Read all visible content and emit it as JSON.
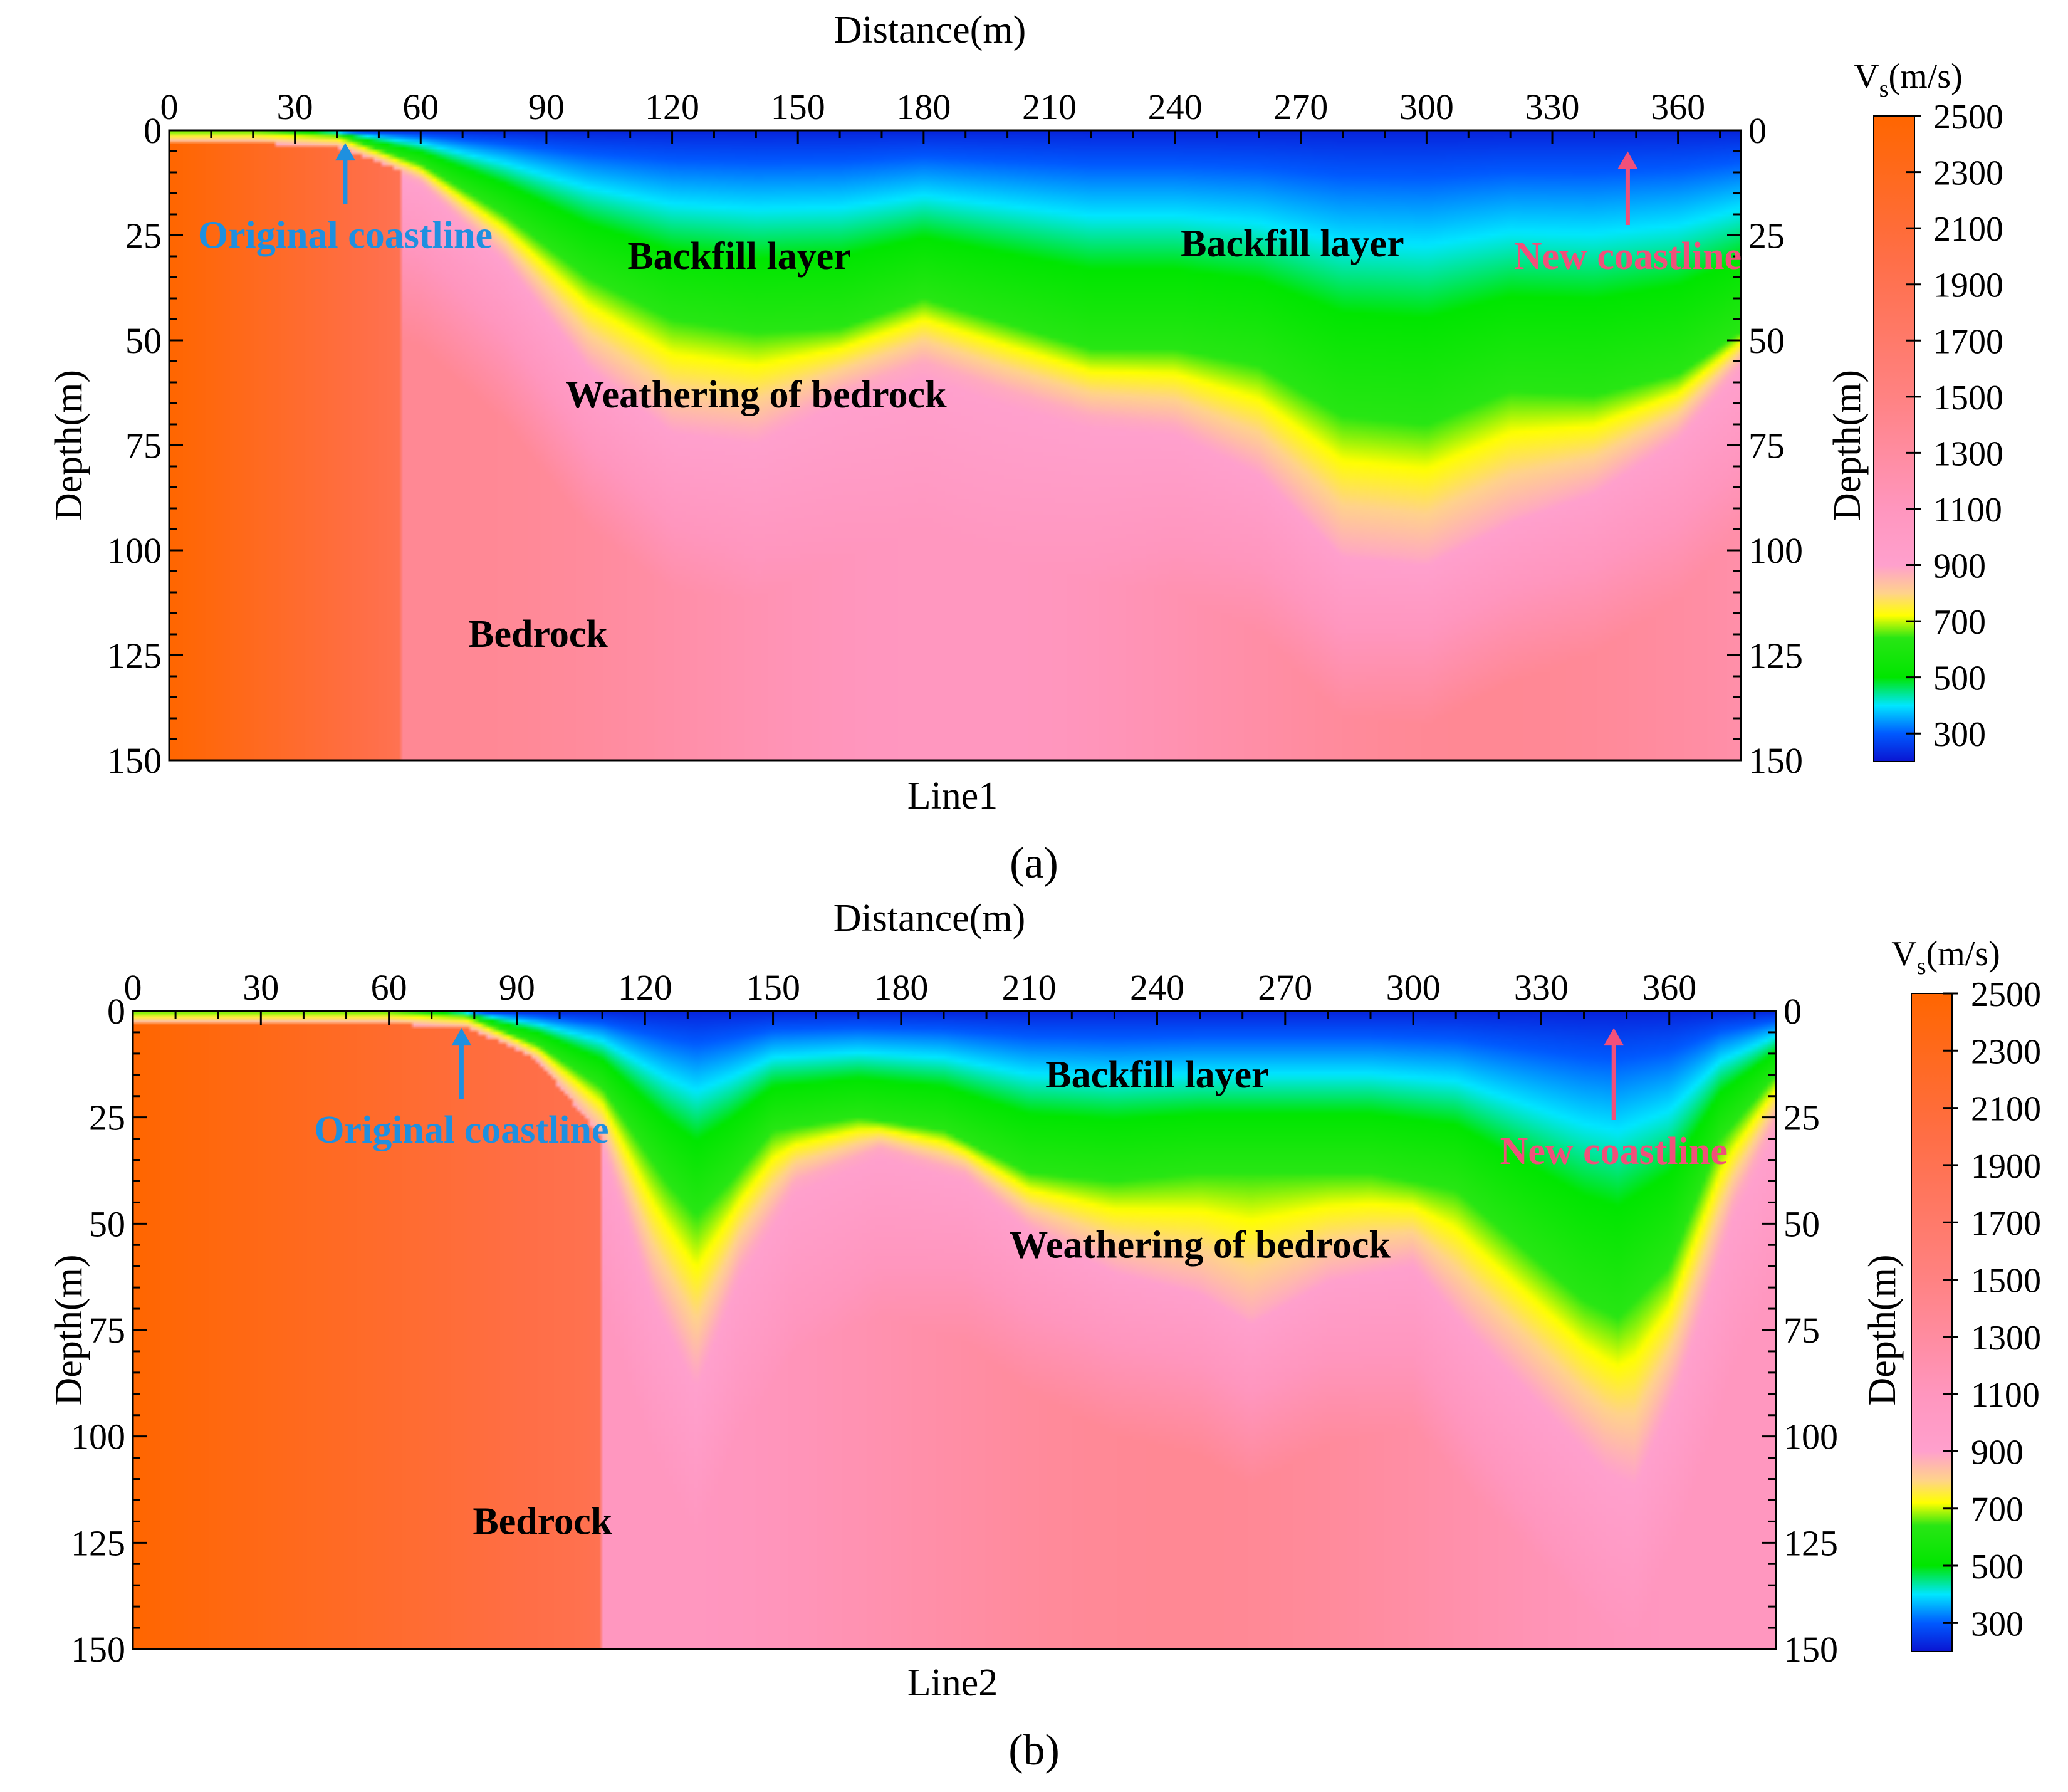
{
  "chart_data": [
    {
      "type": "heatmap",
      "panel_label": "(a)",
      "line_label": "Line1",
      "xlabel": "Distance(m)",
      "ylabel": "Depth(m)",
      "xlim": [
        0,
        375
      ],
      "ylim": [
        0,
        150
      ],
      "y_inverted": true,
      "x_ticks": [
        0,
        30,
        60,
        90,
        120,
        150,
        180,
        210,
        240,
        270,
        300,
        330,
        360
      ],
      "y_ticks": [
        0,
        25,
        50,
        75,
        100,
        125,
        150
      ],
      "colorbar": {
        "title_main": "V",
        "title_sub": "s",
        "title_unit": "(m/s)",
        "range": [
          200,
          2500
        ],
        "ticks": [
          300,
          500,
          700,
          900,
          1100,
          1300,
          1500,
          1700,
          1900,
          2100,
          2300,
          2500
        ]
      },
      "interfaces": {
        "backfill_base": [
          [
            0,
            0
          ],
          [
            20,
            0
          ],
          [
            40,
            1
          ],
          [
            60,
            8
          ],
          [
            80,
            20
          ],
          [
            100,
            35
          ],
          [
            120,
            45
          ],
          [
            140,
            48
          ],
          [
            160,
            47
          ],
          [
            180,
            40
          ],
          [
            200,
            46
          ],
          [
            220,
            52
          ],
          [
            240,
            52
          ],
          [
            260,
            56
          ],
          [
            280,
            68
          ],
          [
            300,
            70
          ],
          [
            320,
            62
          ],
          [
            340,
            63
          ],
          [
            360,
            58
          ],
          [
            375,
            48
          ]
        ],
        "weathering_base": [
          [
            0,
            0
          ],
          [
            20,
            0
          ],
          [
            40,
            3
          ],
          [
            60,
            12
          ],
          [
            80,
            30
          ],
          [
            100,
            55
          ],
          [
            120,
            70
          ],
          [
            140,
            72
          ],
          [
            160,
            62
          ],
          [
            180,
            55
          ],
          [
            200,
            62
          ],
          [
            220,
            68
          ],
          [
            240,
            70
          ],
          [
            260,
            80
          ],
          [
            280,
            100
          ],
          [
            300,
            102
          ],
          [
            320,
            92
          ],
          [
            340,
            85
          ],
          [
            360,
            72
          ],
          [
            375,
            55
          ]
        ]
      },
      "annotations": [
        {
          "text": "Original coastline",
          "x": 42,
          "y": 25,
          "color": "#1e90e0",
          "kind": "arrow",
          "arrow_tip_y": 3
        },
        {
          "text": "New coastline",
          "x": 348,
          "y": 30,
          "color": "#f0507a",
          "kind": "arrow",
          "arrow_tip_y": 5
        },
        {
          "text": "Backfill layer",
          "x": 136,
          "y": 30,
          "color": "#000000"
        },
        {
          "text": "Backfill layer",
          "x": 268,
          "y": 27,
          "color": "#000000"
        },
        {
          "text": "Weathering of bedrock",
          "x": 140,
          "y": 63,
          "color": "#000000"
        },
        {
          "text": "Bedrock",
          "x": 88,
          "y": 120,
          "color": "#000000"
        }
      ]
    },
    {
      "type": "heatmap",
      "panel_label": "(b)",
      "line_label": "Line2",
      "xlabel": "Distance(m)",
      "ylabel": "Depth(m)",
      "xlim": [
        0,
        385
      ],
      "ylim": [
        0,
        150
      ],
      "y_inverted": true,
      "x_ticks": [
        0,
        30,
        60,
        90,
        120,
        150,
        180,
        210,
        240,
        270,
        300,
        330,
        360
      ],
      "y_ticks": [
        0,
        25,
        50,
        75,
        100,
        125,
        150
      ],
      "colorbar": {
        "title_main": "V",
        "title_sub": "s",
        "title_unit": "(m/s)",
        "range": [
          200,
          2500
        ],
        "ticks": [
          300,
          500,
          700,
          900,
          1100,
          1300,
          1500,
          1700,
          1900,
          2100,
          2300,
          2500
        ]
      },
      "interfaces": {
        "backfill_base": [
          [
            0,
            0
          ],
          [
            60,
            0
          ],
          [
            78,
            1
          ],
          [
            95,
            8
          ],
          [
            110,
            18
          ],
          [
            125,
            40
          ],
          [
            132,
            48
          ],
          [
            140,
            40
          ],
          [
            150,
            28
          ],
          [
            170,
            25
          ],
          [
            190,
            28
          ],
          [
            210,
            38
          ],
          [
            230,
            40
          ],
          [
            250,
            38
          ],
          [
            270,
            38
          ],
          [
            290,
            38
          ],
          [
            310,
            42
          ],
          [
            325,
            55
          ],
          [
            340,
            68
          ],
          [
            348,
            72
          ],
          [
            360,
            60
          ],
          [
            372,
            30
          ],
          [
            385,
            15
          ]
        ],
        "weathering_base": [
          [
            0,
            0
          ],
          [
            60,
            0
          ],
          [
            78,
            2
          ],
          [
            95,
            12
          ],
          [
            110,
            30
          ],
          [
            122,
            65
          ],
          [
            132,
            85
          ],
          [
            142,
            60
          ],
          [
            155,
            40
          ],
          [
            175,
            32
          ],
          [
            195,
            38
          ],
          [
            210,
            50
          ],
          [
            230,
            60
          ],
          [
            250,
            65
          ],
          [
            262,
            72
          ],
          [
            280,
            62
          ],
          [
            300,
            58
          ],
          [
            315,
            75
          ],
          [
            330,
            90
          ],
          [
            345,
            105
          ],
          [
            352,
            108
          ],
          [
            362,
            85
          ],
          [
            375,
            45
          ],
          [
            385,
            25
          ]
        ]
      },
      "annotations": [
        {
          "text": "Original coastline",
          "x": 77,
          "y": 28,
          "color": "#1e90e0",
          "kind": "arrow",
          "arrow_tip_y": 4
        },
        {
          "text": "New coastline",
          "x": 347,
          "y": 33,
          "color": "#f0507a",
          "kind": "arrow",
          "arrow_tip_y": 4
        },
        {
          "text": "Backfill layer",
          "x": 240,
          "y": 15,
          "color": "#000000"
        },
        {
          "text": "Weathering of bedrock",
          "x": 250,
          "y": 55,
          "color": "#000000"
        },
        {
          "text": "Bedrock",
          "x": 96,
          "y": 120,
          "color": "#000000"
        }
      ]
    }
  ]
}
